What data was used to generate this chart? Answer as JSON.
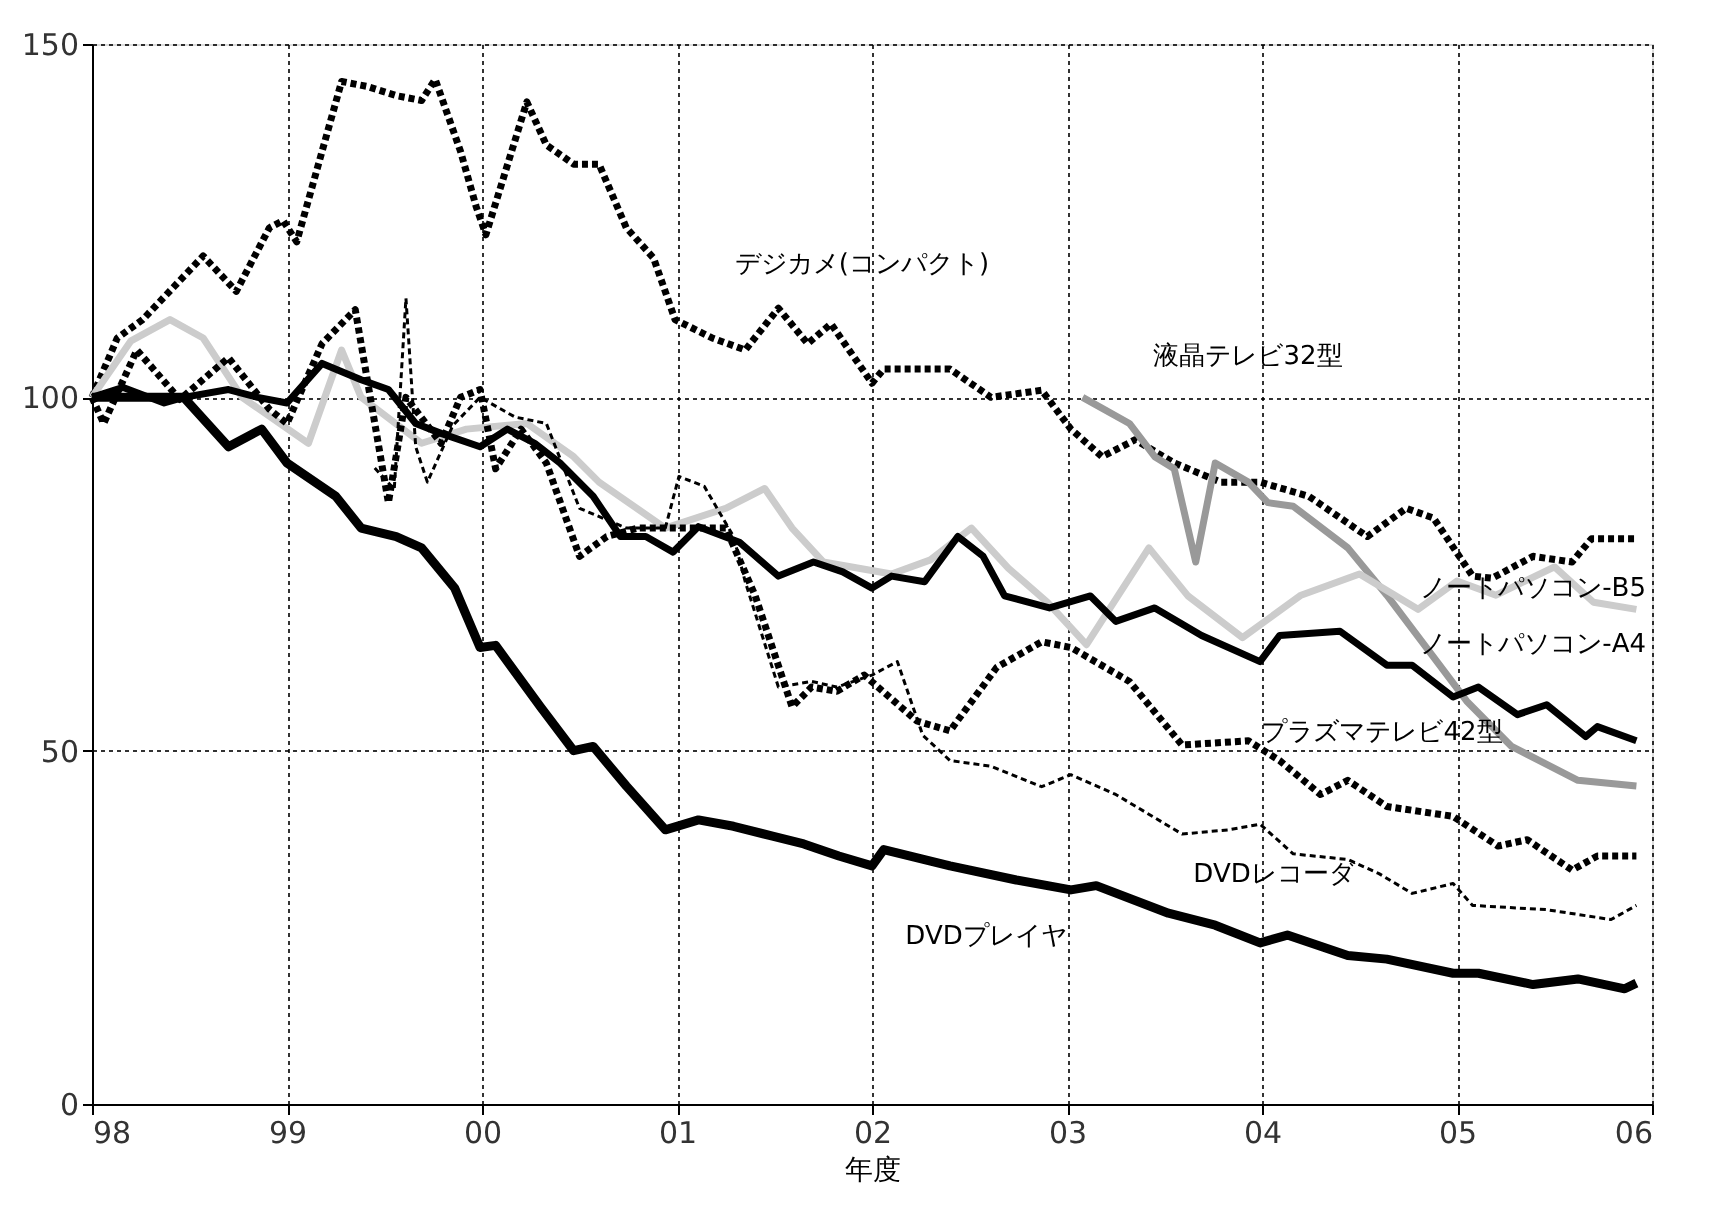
{
  "chart_data": {
    "type": "line",
    "xlabel": "年度",
    "xlim": [
      1998,
      2006
    ],
    "ylim": [
      0,
      150
    ],
    "xticks": [
      {
        "value": 1998,
        "label": "98"
      },
      {
        "value": 1999,
        "label": "99"
      },
      {
        "value": 2000,
        "label": "00"
      },
      {
        "value": 2001,
        "label": "01"
      },
      {
        "value": 2002,
        "label": "02"
      },
      {
        "value": 2003,
        "label": "03"
      },
      {
        "value": 2004,
        "label": "04"
      },
      {
        "value": 2005,
        "label": "05"
      },
      {
        "value": 2006,
        "label": "06"
      }
    ],
    "yticks": [
      0,
      50,
      100,
      150
    ],
    "grid": true,
    "series": [
      {
        "name": "デジカメ(コンパクト)",
        "color": "#000000",
        "line_style": "dotted",
        "x": [
          1998,
          1998.13,
          1998.26,
          1998.57,
          1998.74,
          1998.91,
          1998.98,
          1999.05,
          1999.28,
          1999.41,
          1999.56,
          1999.69,
          1999.76,
          1999.89,
          1999.97,
          2000.02,
          2000.23,
          2000.33,
          2000.47,
          2000.6,
          2000.74,
          2000.88,
          2000.99,
          2001.18,
          2001.35,
          2001.52,
          2001.67,
          2001.79,
          2002,
          2002.06,
          2002.4,
          2002.61,
          2002.87,
          2003.02,
          2003.18,
          2003.35,
          2003.55,
          2003.79,
          2003.99,
          2004.24,
          2004.54,
          2004.74,
          2004.88,
          2005.08,
          2005.18,
          2005.39,
          2005.59,
          2005.69,
          2005.92
        ],
        "values": [
          100,
          108.4,
          111,
          120,
          115,
          124,
          125,
          122,
          144.7,
          144,
          142.7,
          142,
          145,
          134.8,
          127,
          123,
          141.8,
          135.7,
          133,
          133,
          124,
          119.7,
          111,
          108.4,
          106.7,
          112.6,
          107.6,
          110.4,
          102,
          104,
          104,
          100,
          101,
          95.5,
          91.6,
          94,
          90.7,
          88,
          88,
          86,
          80.3,
          84.3,
          82.9,
          74.7,
          74.4,
          77.5,
          76.7,
          80,
          80
        ]
      },
      {
        "name": "液晶テレビ32型",
        "color": "#999999",
        "line_style": "solid",
        "x": [
          2003.08,
          2003.32,
          2003.45,
          2003.55,
          2003.66,
          2003.76,
          2003.93,
          2004.03,
          2004.16,
          2004.44,
          2004.64,
          2005.05,
          2005.28,
          2005.62,
          2005.92
        ],
        "values": [
          100,
          96.3,
          91.6,
          89.9,
          76.7,
          90.7,
          88,
          85.1,
          84.6,
          78.7,
          72,
          57,
          50.6,
          45.8,
          45
        ]
      },
      {
        "name": "ノートパソコン-B5",
        "color": "#cccccc",
        "line_style": "solid",
        "x": [
          1998,
          1998.2,
          1998.4,
          1998.57,
          1998.77,
          1999.11,
          1999.28,
          1999.38,
          1999.69,
          1999.92,
          2000.23,
          2000.47,
          2000.6,
          2000.94,
          2001.25,
          2001.45,
          2001.59,
          2001.75,
          2002.1,
          2002.3,
          2002.51,
          2002.7,
          2002.9,
          2003.1,
          2003.42,
          2003.62,
          2003.9,
          2004.2,
          2004.5,
          2004.8,
          2005,
          2005.2,
          2005.5,
          2005.7,
          2005.92
        ],
        "values": [
          100,
          108,
          111,
          108.4,
          100,
          93.5,
          106.7,
          100,
          93.5,
          95.5,
          96.3,
          91.6,
          88,
          81.5,
          84.3,
          87.1,
          81.5,
          76.7,
          75,
          77,
          81.5,
          75.8,
          71,
          65,
          78.7,
          71.9,
          66,
          72,
          75,
          70,
          74,
          72,
          76,
          71,
          70
        ]
      },
      {
        "name": "ノートパソコン-A4",
        "color": "#000000",
        "line_style": "solid",
        "x": [
          1998,
          1998.16,
          1998.37,
          1998.47,
          1998.7,
          1998.85,
          1999,
          1999.18,
          1999.38,
          1999.52,
          1999.66,
          1999.79,
          1999.99,
          2000.13,
          2000.27,
          2000.4,
          2000.57,
          2000.71,
          2000.84,
          2000.98,
          2001.11,
          2001.32,
          2001.52,
          2001.7,
          2001.85,
          2002,
          2002.1,
          2002.27,
          2002.44,
          2002.57,
          2002.68,
          2002.91,
          2003.12,
          2003.25,
          2003.45,
          2003.69,
          2003.99,
          2004.09,
          2004.4,
          2004.64,
          2004.77,
          2004.98,
          2005.11,
          2005.31,
          2005.46,
          2005.66,
          2005.72,
          2005.92
        ],
        "values": [
          100,
          101.4,
          99.2,
          100,
          101.1,
          100,
          99.2,
          104.8,
          102.5,
          101.1,
          96.3,
          94.9,
          93,
          95.5,
          93.5,
          90.7,
          86,
          80.3,
          80.3,
          78.1,
          81.7,
          79.5,
          74.7,
          76.7,
          75.3,
          73,
          74.7,
          73.9,
          80.3,
          77.5,
          71.9,
          70.2,
          71.9,
          68.3,
          70.2,
          66.3,
          62.6,
          66.3,
          66.9,
          62.1,
          62.1,
          57.6,
          59,
          55.1,
          56.5,
          52,
          53.4,
          51.4
        ]
      },
      {
        "name": "プラズマテレビ42型",
        "color": "#000000",
        "line_style": "dotted",
        "x": [
          1998,
          1998.06,
          1998.23,
          1998.45,
          1998.7,
          1998.91,
          1999,
          1999.18,
          1999.35,
          1999.52,
          1999.61,
          1999.79,
          1999.89,
          1999.99,
          2000.07,
          2000.2,
          2000.33,
          2000.5,
          2000.64,
          2000.8,
          2001.01,
          2001.25,
          2001.4,
          2001.59,
          2001.69,
          2001.82,
          2001.96,
          2002.23,
          2002.4,
          2002.64,
          2002.87,
          2003.02,
          2003.32,
          2003.59,
          2003.93,
          2004.09,
          2004.3,
          2004.44,
          2004.64,
          2004.98,
          2005.21,
          2005.36,
          2005.59,
          2005.72,
          2005.92
        ],
        "values": [
          100,
          96.3,
          106.7,
          99.7,
          105.6,
          98.3,
          96.3,
          107.6,
          112.4,
          85.1,
          100,
          93.5,
          100,
          101.1,
          89.9,
          95.5,
          90.7,
          77.5,
          80.3,
          81.5,
          81.5,
          81.5,
          72,
          56.2,
          59,
          58.4,
          60.7,
          54.2,
          52.8,
          61.8,
          65.4,
          64.6,
          59.8,
          50.8,
          51.4,
          48.6,
          43.8,
          45.8,
          42.1,
          40.7,
          36.5,
          37.4,
          33.1,
          35.1,
          35.1
        ]
      },
      {
        "name": "DVDレコーダ",
        "color": "#000000",
        "line_style": "dotted",
        "x": [
          1999.45,
          1999.55,
          1999.61,
          1999.66,
          1999.72,
          1999.85,
          1999.99,
          2000.17,
          2000.33,
          2000.5,
          2000.74,
          2000.94,
          2001.01,
          2001.14,
          2001.29,
          2001.35,
          2001.52,
          2001.69,
          2001.82,
          2002,
          2002.13,
          2002.26,
          2002.4,
          2002.61,
          2002.87,
          2003.02,
          2003.25,
          2003.59,
          2003.83,
          2003.99,
          2004.16,
          2004.44,
          2004.6,
          2004.77,
          2004.98,
          2005.08,
          2005.46,
          2005.79,
          2005.92
        ],
        "values": [
          90,
          87,
          114,
          93,
          88,
          96,
          100,
          97.2,
          96.3,
          84.3,
          81.5,
          81.5,
          88.8,
          87.4,
          80.3,
          73.9,
          59,
          59.8,
          59,
          60.7,
          62.6,
          52.2,
          48.6,
          47.8,
          44.9,
          46.6,
          43.8,
          38.2,
          38.8,
          39.6,
          35.4,
          34.6,
          32.6,
          29.8,
          31.2,
          28.1,
          27.5,
          26.1,
          28.1
        ]
      },
      {
        "name": "DVDプレイヤ",
        "color": "#000000",
        "line_style": "solid",
        "x": [
          1998,
          1998.47,
          1998.7,
          1998.87,
          1999,
          1999.25,
          1999.38,
          1999.56,
          1999.69,
          1999.86,
          1999.99,
          2000.07,
          2000.3,
          2000.47,
          2000.57,
          2000.74,
          2000.94,
          2001.11,
          2001.29,
          2001.49,
          2001.65,
          2001.83,
          2002,
          2002.06,
          2002.4,
          2002.74,
          2003.02,
          2003.15,
          2003.52,
          2003.76,
          2003.99,
          2004.13,
          2004.44,
          2004.64,
          2004.98,
          2005.11,
          2005.39,
          2005.62,
          2005.86,
          2005.92
        ],
        "values": [
          100,
          100,
          93,
          95.5,
          90.7,
          86,
          81.5,
          80.3,
          78.7,
          73,
          64.6,
          64.9,
          56.2,
          50,
          50.6,
          45,
          38.8,
          40.2,
          39.3,
          37.9,
          36.8,
          35.1,
          33.7,
          36,
          33.7,
          31.7,
          30.3,
          30.9,
          27,
          25.3,
          22.8,
          23.9,
          21,
          20.5,
          18.5,
          18.5,
          16.9,
          17.7,
          16.3,
          17.1
        ]
      }
    ]
  }
}
